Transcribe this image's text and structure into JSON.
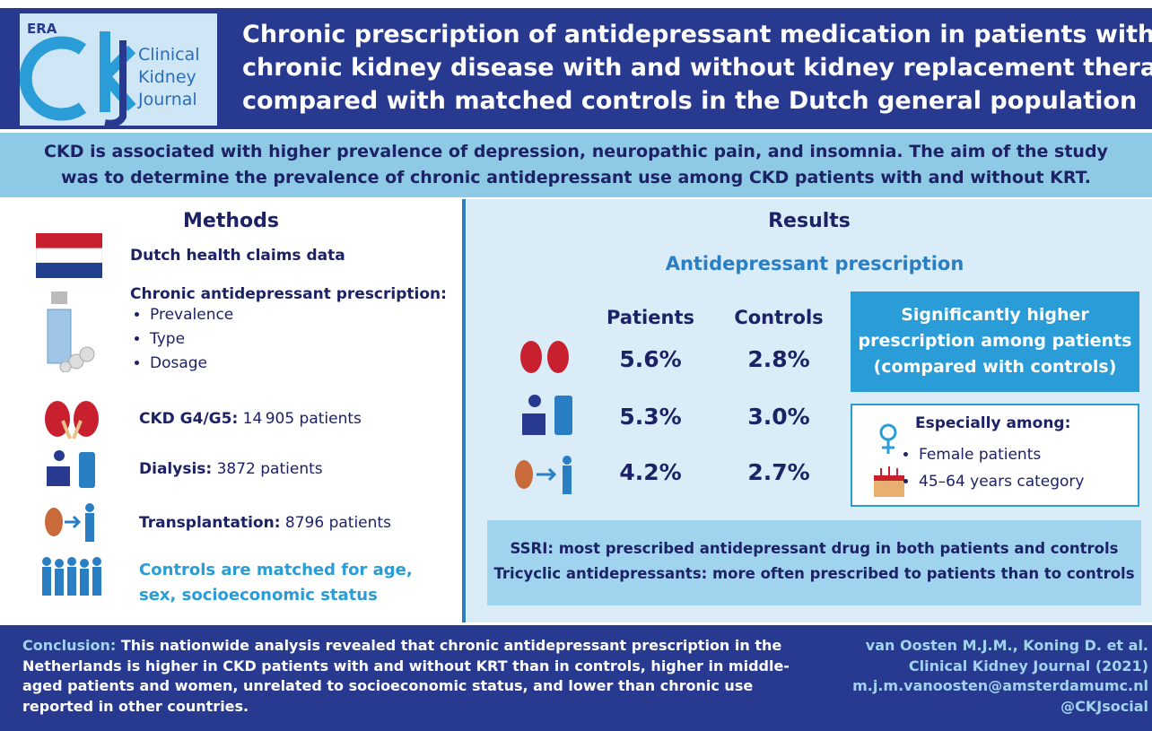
{
  "header": {
    "logo": {
      "brand": "ERA",
      "name_lines": [
        "Clinical",
        "Kidney",
        "Journal"
      ]
    },
    "title_lines": [
      "Chronic prescription of antidepressant medication in patients with",
      "chronic kidney disease with and without kidney replacement therapy",
      "compared with matched controls in the Dutch general population"
    ]
  },
  "intro": {
    "lines": [
      "CKD is associated with higher prevalence of depression, neuropathic pain, and insomnia. The aim of the study",
      "was to determine the prevalence of chronic antidepressant use among CKD patients with and without KRT."
    ]
  },
  "methods": {
    "heading": "Methods",
    "data_source": "Dutch health claims data",
    "prescription": {
      "label": "Chronic antidepressant prescription:",
      "items": [
        "Prevalence",
        "Type",
        "Dosage"
      ]
    },
    "groups": [
      {
        "label": "CKD G4/G5:",
        "count": "14 905 patients"
      },
      {
        "label": "Dialysis:",
        "count": "3872 patients"
      },
      {
        "label": "Transplantation:",
        "count": "8796 patients"
      }
    ],
    "controls_lines": [
      "Controls are matched for age,",
      "sex, socioeconomic status"
    ]
  },
  "results": {
    "heading": "Results",
    "subheading": "Antidepressant prescription",
    "columns": [
      "Patients",
      "Controls"
    ],
    "rows": [
      [
        "5.6%",
        "2.8%"
      ],
      [
        "5.3%",
        "3.0%"
      ],
      [
        "4.2%",
        "2.7%"
      ]
    ],
    "highlight_lines": [
      "Significantly higher",
      "prescription among patients",
      "(compared with controls)"
    ],
    "especially": {
      "label": "Especially among:",
      "items": [
        "Female patients",
        "45–64 years category"
      ]
    },
    "findings": [
      "SSRI: most prescribed antidepressant drug in both patients and controls",
      "Tricyclic antidepressants: more often prescribed to patients than to controls"
    ]
  },
  "footer": {
    "conclusion": {
      "label": "Conclusion:",
      "lines": [
        " This nationwide analysis revealed that chronic antidepressant prescription in the",
        "Netherlands is higher in CKD patients with and without KRT than in controls, higher in middle-",
        "aged patients and women, unrelated to socioeconomic status, and lower than chronic use",
        "reported in other countries."
      ]
    },
    "citation": [
      "van Oosten M.J.M., Koning D. et al.",
      "Clinical Kidney Journal (2021)",
      "m.j.m.vanoosten@amsterdamumc.nl",
      "@CKJsocial"
    ]
  }
}
